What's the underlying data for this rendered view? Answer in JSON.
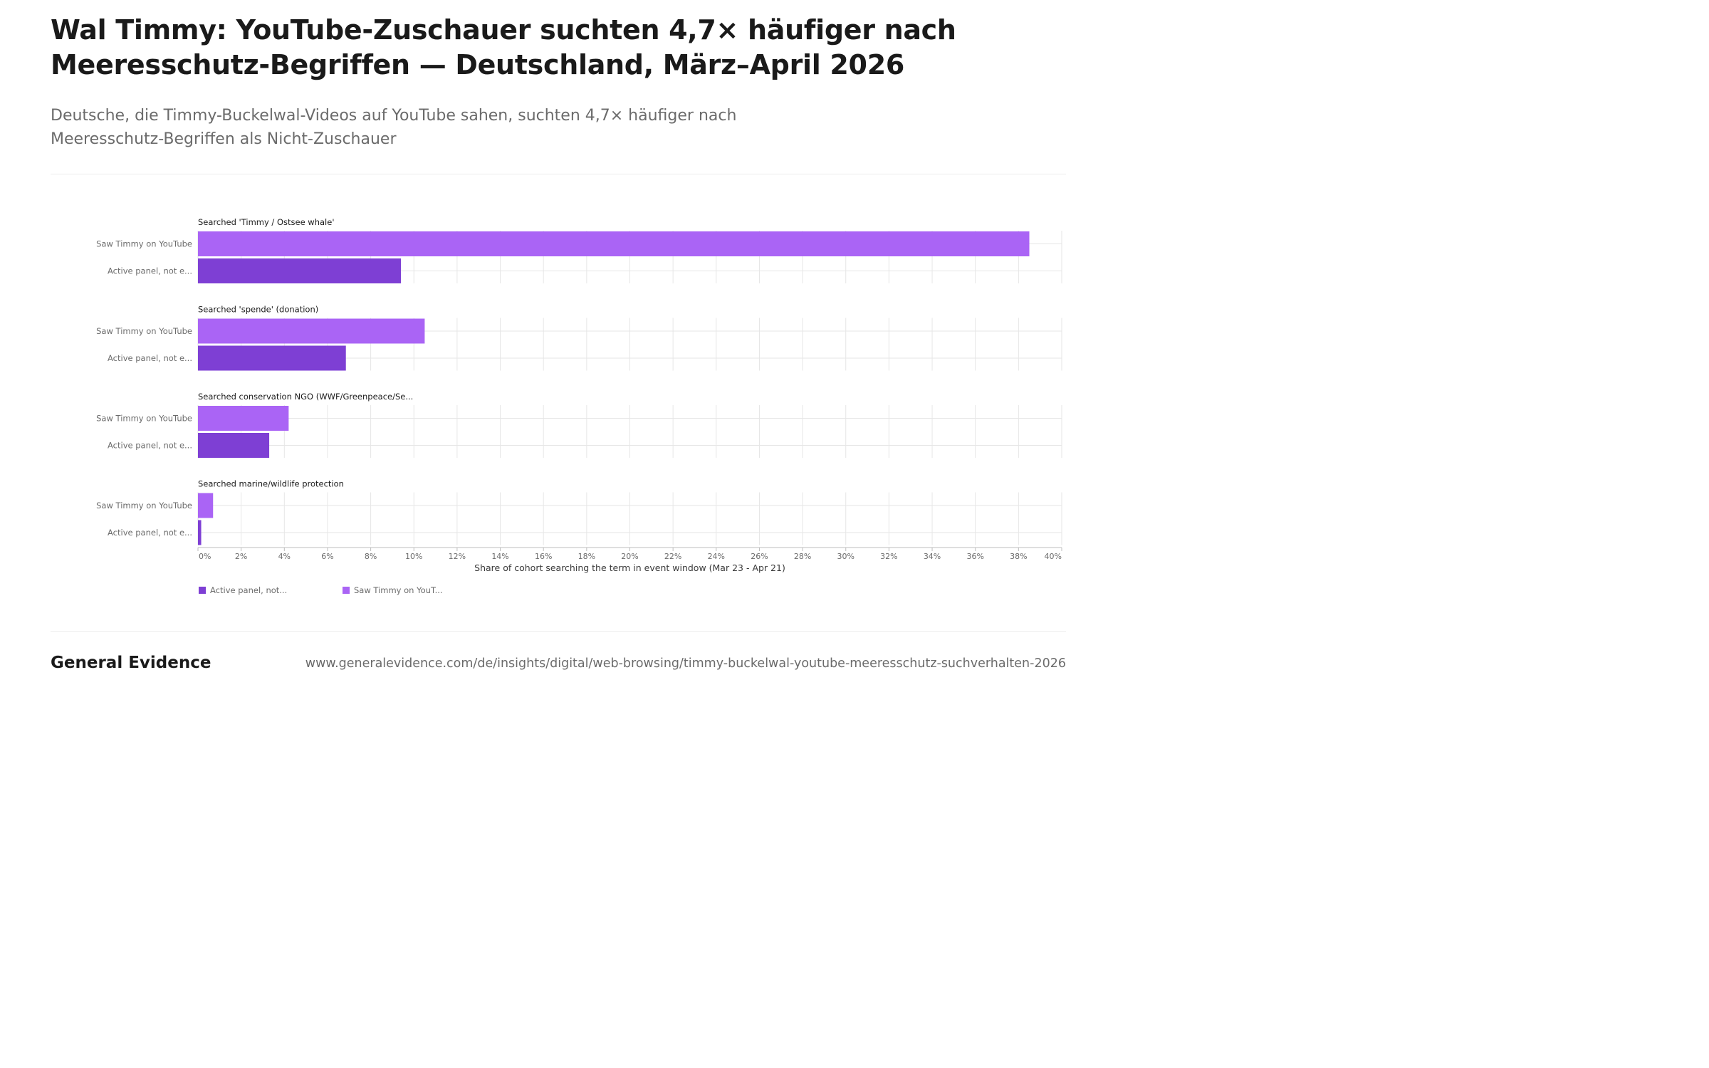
{
  "title": "Wal Timmy: YouTube-Zuschauer suchten 4,7× häufiger nach Meeresschutz-Begriffen — Deutschland, März–April 2026",
  "subtitle": "Deutsche, die Timmy-Buckelwal-Videos auf YouTube sahen, suchten 4,7× häufiger nach Meeresschutz-Begriffen als Nicht-Zuschauer",
  "footer": {
    "brand": "General Evidence",
    "url": "www.generalevidence.com/de/insights/digital/web-browsing/timmy-buckelwal-youtube-meeresschutz-suchverhalten-2026"
  },
  "chart_data": {
    "type": "bar",
    "orientation": "horizontal",
    "xlabel": "Share of cohort searching the term in event window (Mar 23 - Apr 21)",
    "xlim": [
      0,
      40
    ],
    "x_ticks": [
      0,
      2,
      4,
      6,
      8,
      10,
      12,
      14,
      16,
      18,
      20,
      22,
      24,
      26,
      28,
      30,
      32,
      34,
      36,
      38,
      40
    ],
    "tick_suffix": "%",
    "grid": true,
    "legend_position": "bottom-left",
    "row_labels": [
      "Saw Timmy on YouTube",
      "Active panel, not e..."
    ],
    "groups": [
      {
        "label": "Searched 'Timmy / Ostsee whale'",
        "values": {
          "saw": 38.5,
          "panel": 9.4
        }
      },
      {
        "label": "Searched 'spende' (donation)",
        "values": {
          "saw": 10.5,
          "panel": 6.85
        }
      },
      {
        "label": "Searched conservation NGO (WWF/Greenpeace/Se...",
        "values": {
          "saw": 4.2,
          "panel": 3.3
        }
      },
      {
        "label": "Searched marine/wildlife protection",
        "values": {
          "saw": 0.7,
          "panel": 0.15
        }
      }
    ],
    "series": [
      {
        "key": "panel",
        "name": "Active panel, not...",
        "color": "#7e3fd4"
      },
      {
        "key": "saw",
        "name": "Saw Timmy on YouT...",
        "color": "#aa64f5"
      }
    ]
  }
}
